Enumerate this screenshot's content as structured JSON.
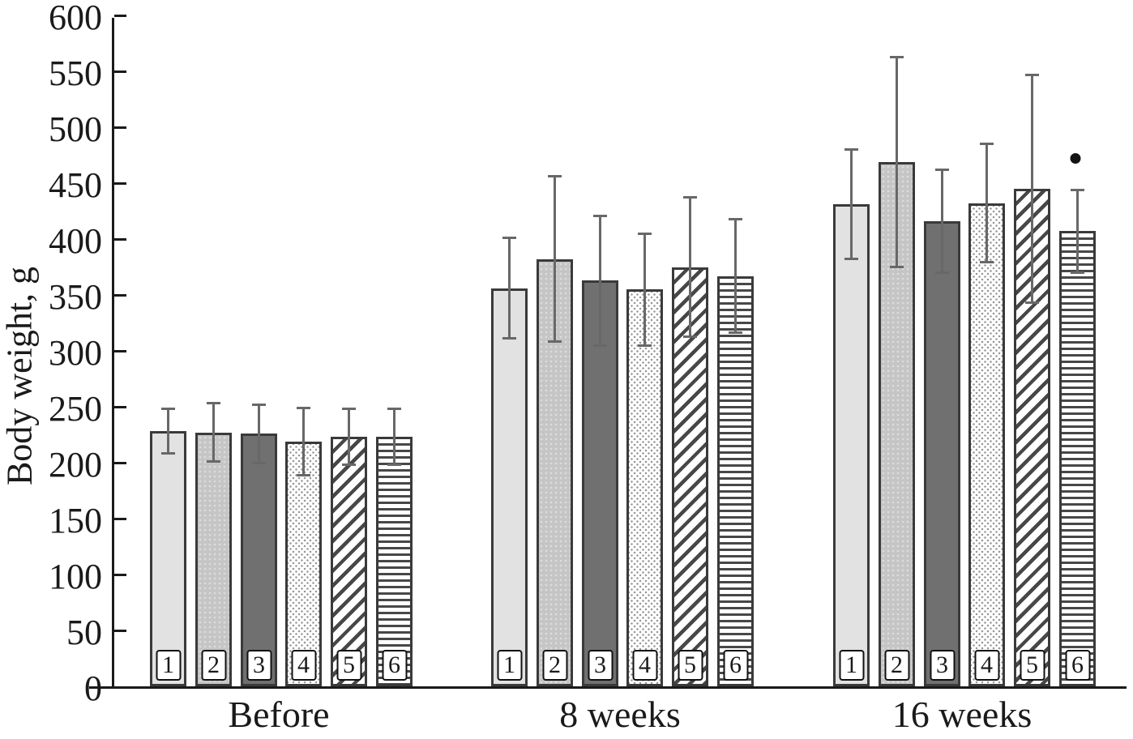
{
  "colors": {
    "axis": "#1a1a1a",
    "text": "#1a1a1a",
    "error": "#686868",
    "marker": "#141414",
    "bar-border": "#3a3a3a",
    "light": "#e2e2e2",
    "medium": "#c5c5c5",
    "dark": "#707070",
    "stroke": "#474747"
  },
  "chart_data": {
    "type": "bar",
    "title": "",
    "xlabel": "",
    "ylabel": "Body weight, g",
    "ylim": [
      0,
      600
    ],
    "ytick_step": 50,
    "yticks": [
      0,
      50,
      100,
      150,
      200,
      250,
      300,
      350,
      400,
      450,
      500,
      550,
      600
    ],
    "grid": false,
    "legend_position": "none",
    "categories": [
      "Before",
      "8 weeks",
      "16 weeks"
    ],
    "series": [
      {
        "label": "1",
        "pattern": "solid-light",
        "values": [
          228,
          356,
          431
        ],
        "errors": [
          20,
          45,
          49
        ]
      },
      {
        "label": "2",
        "pattern": "solid-medium-speckled",
        "values": [
          227,
          382,
          469
        ],
        "errors": [
          26,
          74,
          94
        ]
      },
      {
        "label": "3",
        "pattern": "solid-dark",
        "values": [
          226,
          363,
          416
        ],
        "errors": [
          26,
          58,
          46
        ]
      },
      {
        "label": "4",
        "pattern": "stipple-dots",
        "values": [
          219,
          355,
          432
        ],
        "errors": [
          30,
          50,
          53
        ]
      },
      {
        "label": "5",
        "pattern": "diagonal-hatch",
        "values": [
          223,
          375,
          445
        ],
        "errors": [
          25,
          62,
          102
        ]
      },
      {
        "label": "6",
        "pattern": "horizontal-lines",
        "values": [
          223,
          367,
          407
        ],
        "errors": [
          25,
          51,
          37
        ]
      }
    ],
    "annotations": [
      {
        "symbol": "●",
        "group": "16 weeks",
        "series": "6",
        "y": 474
      }
    ]
  }
}
